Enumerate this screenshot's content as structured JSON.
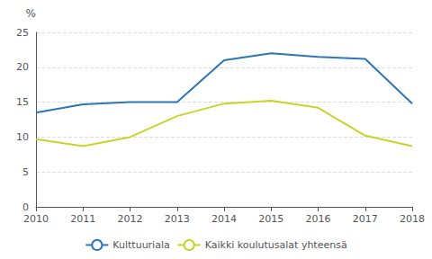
{
  "chart_data": {
    "type": "line",
    "ylabel": "%",
    "x": [
      2010,
      2011,
      2012,
      2013,
      2014,
      2015,
      2016,
      2017,
      2018
    ],
    "series": [
      {
        "name": "Kulttuuriala",
        "color": "#2e75b6",
        "values": [
          13.5,
          14.7,
          15.0,
          15.0,
          21.0,
          22.0,
          21.5,
          21.2,
          14.8
        ]
      },
      {
        "name": "Kaikki koulutusalat yhteensä",
        "color": "#c8d42a",
        "values": [
          9.7,
          8.7,
          10.0,
          13.0,
          14.8,
          15.2,
          14.2,
          10.2,
          8.7
        ]
      }
    ],
    "xlim": [
      2010,
      2018
    ],
    "xticks": [
      2010,
      2011,
      2012,
      2013,
      2014,
      2015,
      2016,
      2017,
      2018
    ],
    "ylim": [
      0,
      25
    ],
    "yticks": [
      0,
      5,
      10,
      15,
      20,
      25
    ],
    "grid": true,
    "legend": "bottom"
  }
}
